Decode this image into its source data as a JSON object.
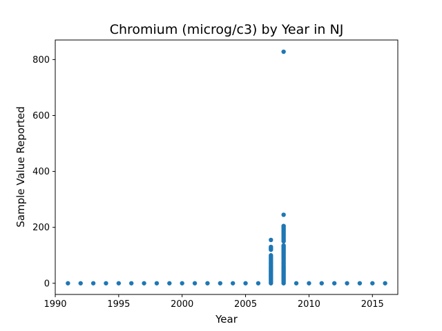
{
  "chart_data": {
    "type": "scatter",
    "title": "Chromium (microg/c3) by Year in NJ",
    "xlabel": "Year",
    "ylabel": "Sample Value Reported",
    "xlim": [
      1990,
      2017
    ],
    "ylim": [
      -40,
      870
    ],
    "xticks": [
      1990,
      1995,
      2000,
      2005,
      2010,
      2015
    ],
    "yticks": [
      0,
      200,
      400,
      600,
      800
    ],
    "grid": false,
    "legend": "none",
    "marker_color": "#1f77b4",
    "series": [
      {
        "points": [
          [
            1991,
            0
          ],
          [
            1992,
            0
          ],
          [
            1993,
            0
          ],
          [
            1994,
            0
          ],
          [
            1995,
            0
          ],
          [
            1996,
            0
          ],
          [
            1997,
            0
          ],
          [
            1998,
            0
          ],
          [
            1999,
            0
          ],
          [
            2000,
            0
          ],
          [
            2001,
            0
          ],
          [
            2002,
            0
          ],
          [
            2003,
            0
          ],
          [
            2004,
            0
          ],
          [
            2005,
            0
          ],
          [
            2006,
            0
          ],
          [
            2007,
            0
          ],
          [
            2007,
            5
          ],
          [
            2007,
            10
          ],
          [
            2007,
            15
          ],
          [
            2007,
            20
          ],
          [
            2007,
            25
          ],
          [
            2007,
            30
          ],
          [
            2007,
            35
          ],
          [
            2007,
            40
          ],
          [
            2007,
            45
          ],
          [
            2007,
            50
          ],
          [
            2007,
            55
          ],
          [
            2007,
            60
          ],
          [
            2007,
            65
          ],
          [
            2007,
            70
          ],
          [
            2007,
            75
          ],
          [
            2007,
            80
          ],
          [
            2007,
            85
          ],
          [
            2007,
            90
          ],
          [
            2007,
            95
          ],
          [
            2007,
            100
          ],
          [
            2007,
            120
          ],
          [
            2007,
            125
          ],
          [
            2007,
            130
          ],
          [
            2007,
            155
          ],
          [
            2008,
            0
          ],
          [
            2008,
            5
          ],
          [
            2008,
            10
          ],
          [
            2008,
            15
          ],
          [
            2008,
            20
          ],
          [
            2008,
            25
          ],
          [
            2008,
            30
          ],
          [
            2008,
            35
          ],
          [
            2008,
            40
          ],
          [
            2008,
            45
          ],
          [
            2008,
            50
          ],
          [
            2008,
            55
          ],
          [
            2008,
            60
          ],
          [
            2008,
            65
          ],
          [
            2008,
            70
          ],
          [
            2008,
            75
          ],
          [
            2008,
            80
          ],
          [
            2008,
            85
          ],
          [
            2008,
            90
          ],
          [
            2008,
            95
          ],
          [
            2008,
            100
          ],
          [
            2008,
            105
          ],
          [
            2008,
            110
          ],
          [
            2008,
            115
          ],
          [
            2008,
            120
          ],
          [
            2008,
            125
          ],
          [
            2008,
            130
          ],
          [
            2008,
            135
          ],
          [
            2008,
            150
          ],
          [
            2008,
            155
          ],
          [
            2008,
            160
          ],
          [
            2008,
            165
          ],
          [
            2008,
            170
          ],
          [
            2008,
            175
          ],
          [
            2008,
            180
          ],
          [
            2008,
            185
          ],
          [
            2008,
            190
          ],
          [
            2008,
            195
          ],
          [
            2008,
            200
          ],
          [
            2008,
            205
          ],
          [
            2008,
            245
          ],
          [
            2008,
            828
          ],
          [
            2009,
            0
          ],
          [
            2010,
            0
          ],
          [
            2011,
            0
          ],
          [
            2012,
            0
          ],
          [
            2013,
            0
          ],
          [
            2014,
            0
          ],
          [
            2015,
            0
          ],
          [
            2016,
            0
          ]
        ]
      }
    ]
  }
}
